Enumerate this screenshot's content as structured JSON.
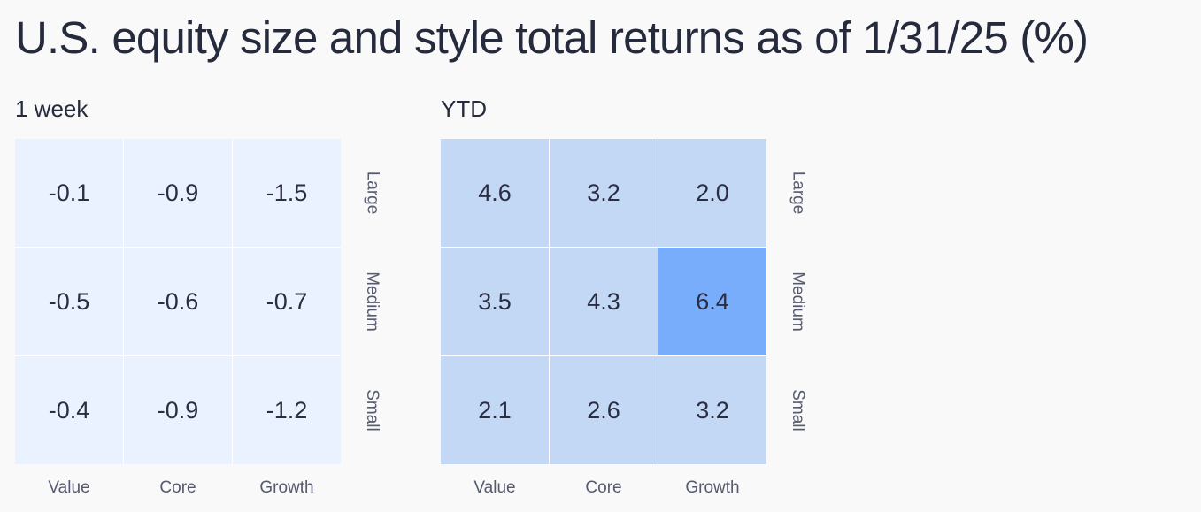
{
  "title": "U.S. equity size and style total returns as of 1/31/25 (%)",
  "colors": {
    "background": "#f9f9fa",
    "low": "#eaf2ff",
    "mid": "#c2d8f5",
    "high": "#78adfb"
  },
  "chart_data": [
    {
      "type": "heatmap",
      "title": "1 week",
      "columns": [
        "Value",
        "Core",
        "Growth"
      ],
      "rows": [
        "Large",
        "Medium",
        "Small"
      ],
      "values": [
        [
          "-0.1",
          "-0.9",
          "-1.5"
        ],
        [
          "-0.5",
          "-0.6",
          "-0.7"
        ],
        [
          "-0.4",
          "-0.9",
          "-1.2"
        ]
      ],
      "cell_colors": [
        [
          "#eaf2ff",
          "#eaf2ff",
          "#eaf2ff"
        ],
        [
          "#eaf2ff",
          "#eaf2ff",
          "#eaf2ff"
        ],
        [
          "#eaf2ff",
          "#eaf2ff",
          "#eaf2ff"
        ]
      ]
    },
    {
      "type": "heatmap",
      "title": "YTD",
      "columns": [
        "Value",
        "Core",
        "Growth"
      ],
      "rows": [
        "Large",
        "Medium",
        "Small"
      ],
      "values": [
        [
          "4.6",
          "3.2",
          "2.0"
        ],
        [
          "3.5",
          "4.3",
          "6.4"
        ],
        [
          "2.1",
          "2.6",
          "3.2"
        ]
      ],
      "cell_colors": [
        [
          "#c2d8f5",
          "#c2d8f5",
          "#c2d8f5"
        ],
        [
          "#c2d8f5",
          "#c2d8f5",
          "#78adfb"
        ],
        [
          "#c2d8f5",
          "#c2d8f5",
          "#c2d8f5"
        ]
      ]
    }
  ]
}
